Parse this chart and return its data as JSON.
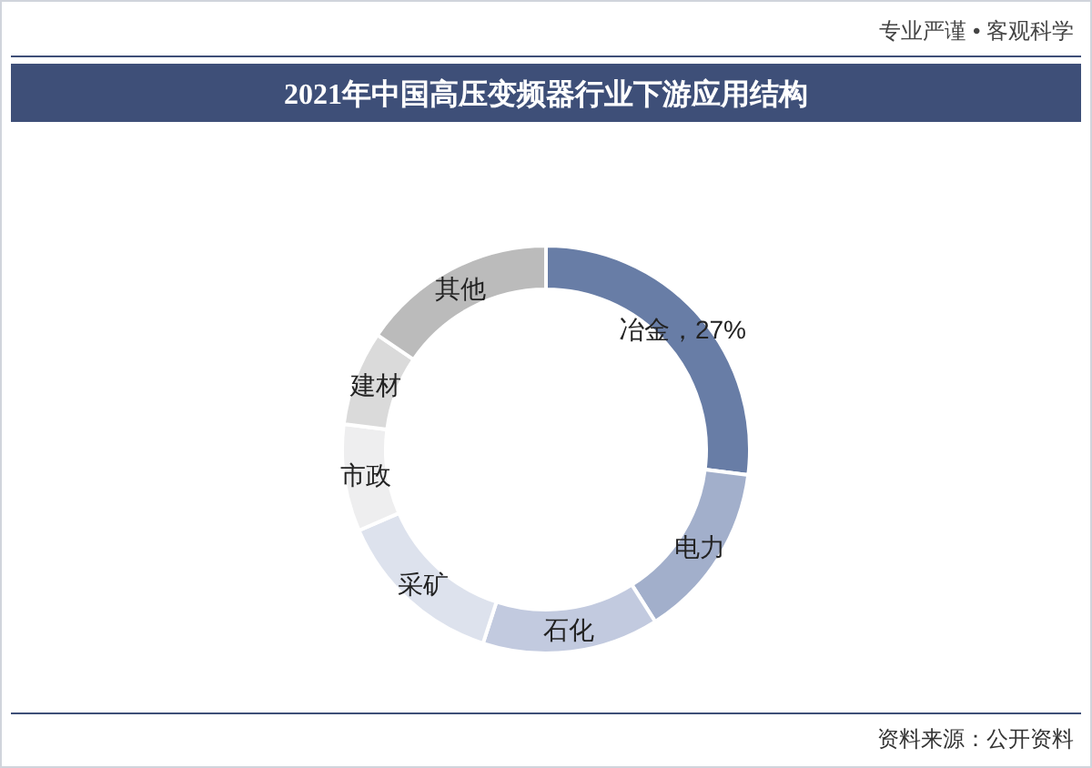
{
  "chart_data": {
    "type": "donut",
    "title": "2021年中国高压变频器行业下游应用结构",
    "categories": [
      "冶金",
      "电力",
      "石化",
      "采矿",
      "市政",
      "建材",
      "其他"
    ],
    "values": [
      27,
      14,
      14,
      13.5,
      8.5,
      7.5,
      15.5
    ],
    "colors": [
      "#687da6",
      "#a2afcb",
      "#c2cadf",
      "#dde2ed",
      "#eeeeef",
      "#dadada",
      "#bbbbbb"
    ],
    "value_labels": [
      "27%",
      null,
      null,
      null,
      null,
      null,
      null
    ],
    "annotations": [
      "专业严谨 • 客观科学",
      "资料来源：公开资料"
    ]
  }
}
